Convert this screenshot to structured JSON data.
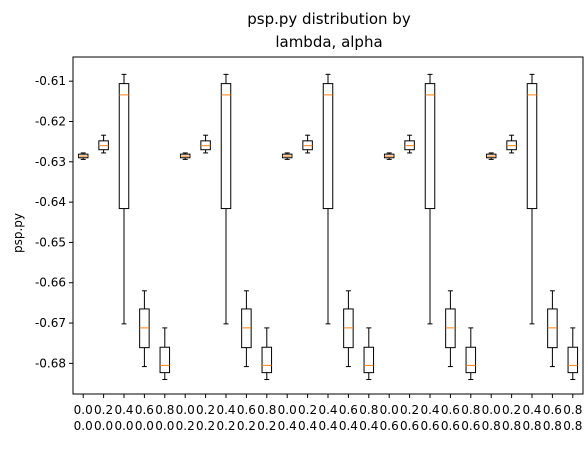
{
  "chart_data": {
    "type": "box",
    "title": [
      "psp.py distribution by",
      "lambda, alpha"
    ],
    "xlabel": "",
    "ylabel": "psp.py",
    "ylim": [
      -0.6876,
      -0.604
    ],
    "yticks": [
      "-0.61",
      "-0.62",
      "-0.63",
      "-0.64",
      "-0.65",
      "-0.66",
      "-0.67",
      "-0.68"
    ],
    "ytick_values": [
      -0.61,
      -0.62,
      -0.63,
      -0.64,
      -0.65,
      -0.66,
      -0.67,
      -0.68
    ],
    "categories": [
      [
        "0.0",
        "0.0"
      ],
      [
        "0.2",
        "0.0"
      ],
      [
        "0.4",
        "0.0"
      ],
      [
        "0.6",
        "0.0"
      ],
      [
        "0.8",
        "0.0"
      ],
      [
        "0.0",
        "0.2"
      ],
      [
        "0.2",
        "0.2"
      ],
      [
        "0.4",
        "0.2"
      ],
      [
        "0.6",
        "0.2"
      ],
      [
        "0.8",
        "0.2"
      ],
      [
        "0.0",
        "0.4"
      ],
      [
        "0.2",
        "0.4"
      ],
      [
        "0.4",
        "0.4"
      ],
      [
        "0.6",
        "0.4"
      ],
      [
        "0.8",
        "0.4"
      ],
      [
        "0.0",
        "0.6"
      ],
      [
        "0.2",
        "0.6"
      ],
      [
        "0.4",
        "0.6"
      ],
      [
        "0.6",
        "0.6"
      ],
      [
        "0.8",
        "0.6"
      ],
      [
        "0.0",
        "0.8"
      ],
      [
        "0.2",
        "0.8"
      ],
      [
        "0.4",
        "0.8"
      ],
      [
        "0.6",
        "0.8"
      ],
      [
        "0.8",
        "0.8"
      ]
    ],
    "box_pattern": [
      {
        "whislo": -0.6294,
        "q1": -0.629,
        "med": -0.6286,
        "q3": -0.6281,
        "whishi": -0.6278
      },
      {
        "whislo": -0.6278,
        "q1": -0.627,
        "med": -0.626,
        "q3": -0.6248,
        "whishi": -0.6234
      },
      {
        "whislo": -0.6702,
        "q1": -0.6416,
        "med": -0.6134,
        "q3": -0.6106,
        "whishi": -0.6083
      },
      {
        "whislo": -0.6808,
        "q1": -0.6761,
        "med": -0.6712,
        "q3": -0.6665,
        "whishi": -0.662
      },
      {
        "whislo": -0.684,
        "q1": -0.6823,
        "med": -0.6805,
        "q3": -0.676,
        "whishi": -0.6712
      }
    ],
    "colors": {
      "box": "#000000",
      "median": "#ff7f0e",
      "axes": "#000000"
    }
  }
}
